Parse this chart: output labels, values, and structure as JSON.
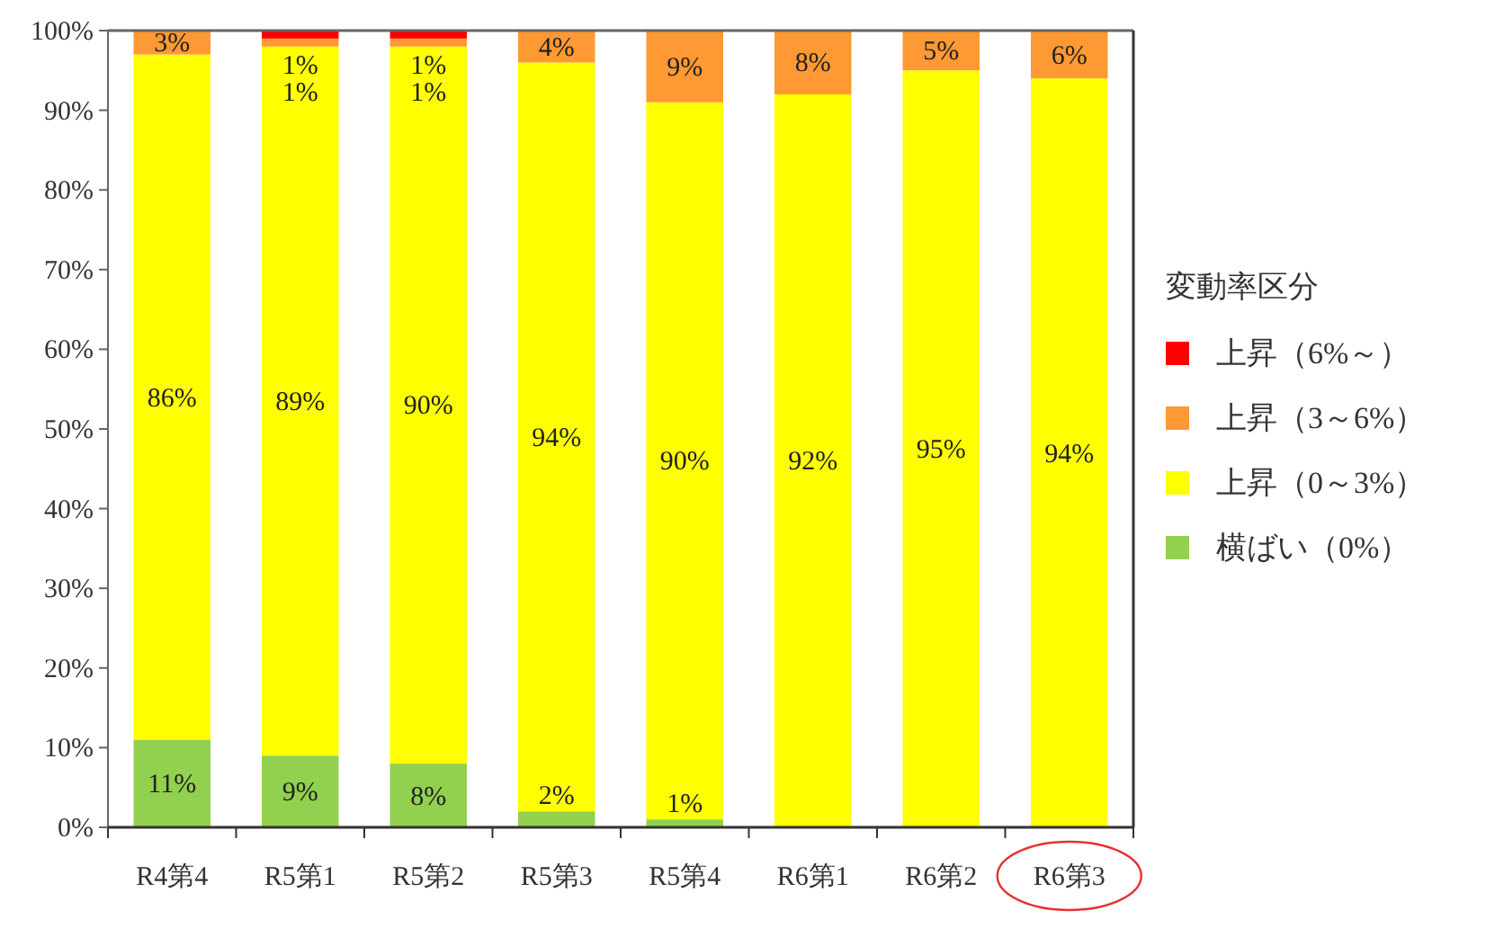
{
  "chart_data": {
    "type": "bar",
    "stacked": true,
    "categories": [
      "R4第4",
      "R5第1",
      "R5第2",
      "R5第3",
      "R5第4",
      "R6第1",
      "R6第2",
      "R6第3"
    ],
    "legend_title": "変動率区分",
    "legend": "right",
    "ylim": [
      0,
      100
    ],
    "yticks": [
      {
        "value": 0,
        "label": "0%"
      },
      {
        "value": 10,
        "label": "10%"
      },
      {
        "value": 20,
        "label": "20%"
      },
      {
        "value": 30,
        "label": "30%"
      },
      {
        "value": 40,
        "label": "40%"
      },
      {
        "value": 50,
        "label": "50%"
      },
      {
        "value": 60,
        "label": "60%"
      },
      {
        "value": 70,
        "label": "70%"
      },
      {
        "value": 80,
        "label": "80%"
      },
      {
        "value": 90,
        "label": "90%"
      },
      {
        "value": 100,
        "label": "100%"
      }
    ],
    "series": [
      {
        "name": "横ばい（0%）",
        "color": "#92d050",
        "values": [
          11,
          9,
          8,
          2,
          1,
          null,
          null,
          null
        ],
        "value_labels": [
          "11%",
          "9%",
          "8%",
          "2%",
          "1%",
          null,
          null,
          null
        ]
      },
      {
        "name": "上昇（0～3%）",
        "color": "#ffff00",
        "values": [
          86,
          89,
          90,
          94,
          90,
          92,
          95,
          94
        ],
        "value_labels": [
          "86%",
          "89%",
          "90%",
          "94%",
          "90%",
          "92%",
          "95%",
          "94%"
        ]
      },
      {
        "name": "上昇（3～6%）",
        "color": "#ff9933",
        "values": [
          3,
          1,
          1,
          4,
          9,
          8,
          5,
          6
        ],
        "value_labels": [
          "3%",
          "1%",
          "1%",
          "4%",
          "9%",
          "8%",
          "5%",
          "6%"
        ]
      },
      {
        "name": "上昇（6%～）",
        "color": "#ff0000",
        "values": [
          null,
          1,
          1,
          null,
          null,
          null,
          null,
          null
        ],
        "value_labels": [
          null,
          "1%",
          "1%",
          null,
          null,
          null,
          null,
          null
        ]
      }
    ]
  }
}
